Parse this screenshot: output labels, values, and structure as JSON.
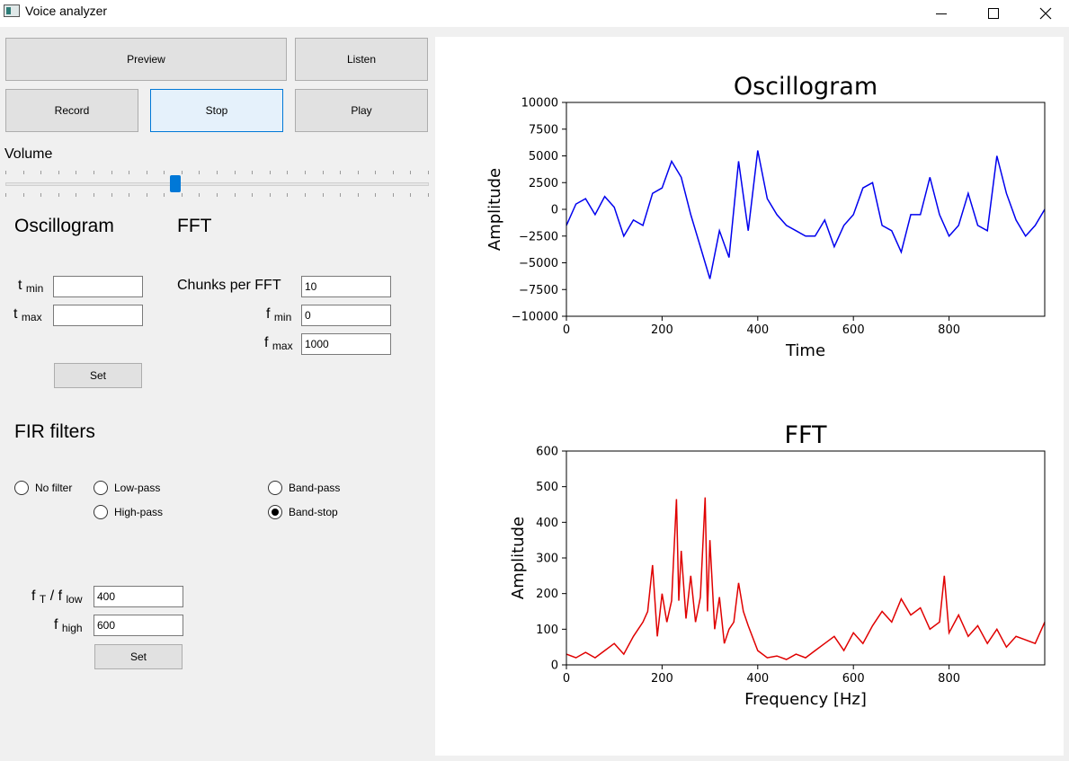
{
  "window": {
    "title": "Voice analyzer",
    "icon": "app-icon"
  },
  "buttons": {
    "preview": "Preview",
    "listen": "Listen",
    "record": "Record",
    "stop": "Stop",
    "play": "Play"
  },
  "volume": {
    "label": "Volume",
    "level": 0.4
  },
  "oscillogram_section": {
    "heading": "Oscillogram",
    "tmin_label": "t",
    "tmin_sub": "min",
    "tmin_value": "",
    "tmax_label": "t",
    "tmax_sub": "max",
    "tmax_value": "",
    "set_label": "Set"
  },
  "fft_section": {
    "heading": "FFT",
    "chunks_label": "Chunks per FFT",
    "chunks_value": "10",
    "fmin_label": "f",
    "fmin_sub": "min",
    "fmin_value": "0",
    "fmax_label": "f",
    "fmax_sub": "max",
    "fmax_value": "1000"
  },
  "fir": {
    "heading": "FIR filters",
    "options": {
      "no_filter": "No filter",
      "low_pass": "Low-pass",
      "high_pass": "High-pass",
      "band_pass": "Band-pass",
      "band_stop": "Band-stop"
    },
    "selected": "band_stop",
    "ft_label_a": "f",
    "ft_sub_a": "T",
    "ft_sep": " / f",
    "ft_sub_b": "low",
    "ft_value": "400",
    "fhigh_label": "f",
    "fhigh_sub": "high",
    "fhigh_value": "600",
    "set_label": "Set"
  },
  "chart_data": [
    {
      "type": "line",
      "title": "Oscillogram",
      "xlabel": "Time",
      "ylabel": "Amplitude",
      "xlim": [
        0,
        1000
      ],
      "ylim": [
        -10000,
        10000
      ],
      "xticks": [
        "0",
        "200",
        "400",
        "600",
        "800"
      ],
      "yticks": [
        "10000",
        "7500",
        "5000",
        "2500",
        "0",
        "−2500",
        "−5000",
        "−7500",
        "−10000"
      ],
      "color": "#0000ee",
      "x": [
        0,
        20,
        40,
        60,
        80,
        100,
        120,
        140,
        160,
        180,
        200,
        220,
        240,
        260,
        280,
        300,
        320,
        340,
        360,
        380,
        400,
        420,
        440,
        460,
        480,
        500,
        520,
        540,
        560,
        580,
        600,
        620,
        640,
        660,
        680,
        700,
        720,
        740,
        760,
        780,
        800,
        820,
        840,
        860,
        880,
        900,
        920,
        940,
        960,
        980,
        1000
      ],
      "y": [
        -1500,
        500,
        1000,
        -500,
        1200,
        200,
        -2500,
        -1000,
        -1500,
        1500,
        2000,
        4500,
        3000,
        -500,
        -3500,
        -6500,
        -2000,
        -4500,
        4500,
        -2000,
        5500,
        1000,
        -500,
        -1500,
        -2000,
        -2500,
        -2500,
        -1000,
        -3500,
        -1500,
        -500,
        2000,
        2500,
        -1500,
        -2000,
        -4000,
        -500,
        -500,
        3000,
        -500,
        -2500,
        -1500,
        1500,
        -1500,
        -2000,
        5000,
        1500,
        -1000,
        -2500,
        -1500,
        0
      ]
    },
    {
      "type": "line",
      "title": "FFT",
      "xlabel": "Frequency [Hz]",
      "ylabel": "Amplitude",
      "xlim": [
        0,
        1000
      ],
      "ylim": [
        0,
        600
      ],
      "xticks": [
        "0",
        "200",
        "400",
        "600",
        "800"
      ],
      "yticks": [
        "600",
        "500",
        "400",
        "300",
        "200",
        "100",
        "0"
      ],
      "color": "#e00000",
      "x": [
        0,
        20,
        40,
        60,
        80,
        100,
        120,
        140,
        160,
        170,
        180,
        190,
        200,
        210,
        220,
        230,
        235,
        240,
        250,
        260,
        270,
        280,
        290,
        295,
        300,
        310,
        320,
        330,
        340,
        350,
        360,
        370,
        380,
        400,
        420,
        440,
        460,
        480,
        500,
        520,
        540,
        560,
        580,
        600,
        620,
        640,
        660,
        680,
        700,
        720,
        740,
        760,
        780,
        790,
        800,
        820,
        840,
        860,
        880,
        900,
        920,
        940,
        960,
        980,
        1000
      ],
      "y": [
        30,
        20,
        35,
        20,
        40,
        60,
        30,
        80,
        120,
        150,
        280,
        80,
        200,
        120,
        180,
        465,
        180,
        320,
        130,
        250,
        120,
        190,
        470,
        150,
        350,
        100,
        190,
        60,
        100,
        120,
        230,
        150,
        110,
        40,
        20,
        25,
        15,
        30,
        20,
        40,
        60,
        80,
        40,
        90,
        60,
        110,
        150,
        120,
        185,
        140,
        160,
        100,
        120,
        250,
        90,
        140,
        80,
        110,
        60,
        100,
        50,
        80,
        70,
        60,
        120
      ]
    }
  ]
}
